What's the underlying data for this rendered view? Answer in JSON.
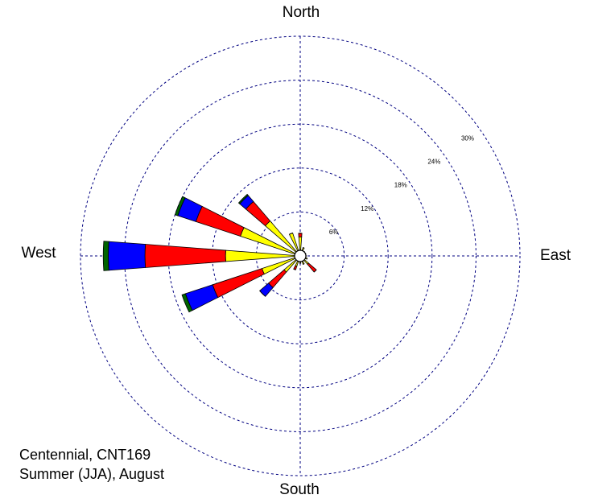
{
  "chart_data": {
    "type": "windrose",
    "categories": [
      "North",
      null,
      null,
      null,
      "East",
      null,
      null,
      null,
      "South",
      null,
      null,
      null,
      "West",
      null,
      null,
      null
    ],
    "series": [
      {
        "color": "#ffff00",
        "values": [
          2.6,
          1.2,
          0.8,
          0.8,
          0.8,
          1.0,
          1.5,
          1.2,
          1.0,
          1.5,
          2.9,
          5.5,
          10.2,
          8.6,
          6.3,
          3.3
        ]
      },
      {
        "color": "#ff0000",
        "values": [
          0.5,
          0,
          0,
          0,
          0,
          0,
          1.4,
          0,
          0,
          0.5,
          2.8,
          7.1,
          11.0,
          6.4,
          3.5,
          0
        ]
      },
      {
        "color": "#0000ff",
        "values": [
          0,
          0,
          0,
          0,
          0,
          0,
          0,
          0,
          0,
          0,
          1.6,
          3.9,
          5.0,
          2.6,
          1.1,
          0
        ]
      },
      {
        "color": "#006400",
        "values": [
          0,
          0,
          0,
          0,
          0,
          0,
          0,
          0,
          0,
          0,
          0,
          0.5,
          0.7,
          0.4,
          0.2,
          0
        ]
      }
    ],
    "rlim": [
      0,
      30
    ],
    "rticks": [
      {
        "value": 6,
        "label": "6%"
      },
      {
        "value": 12,
        "label": "12%"
      },
      {
        "value": 18,
        "label": "18%"
      },
      {
        "value": 24,
        "label": "24%"
      },
      {
        "value": 30,
        "label": "30%"
      }
    ],
    "grid": true,
    "grid_color": "#000080",
    "annotations": [
      "Centennial, CNT169",
      "Summer (JJA), August"
    ]
  }
}
